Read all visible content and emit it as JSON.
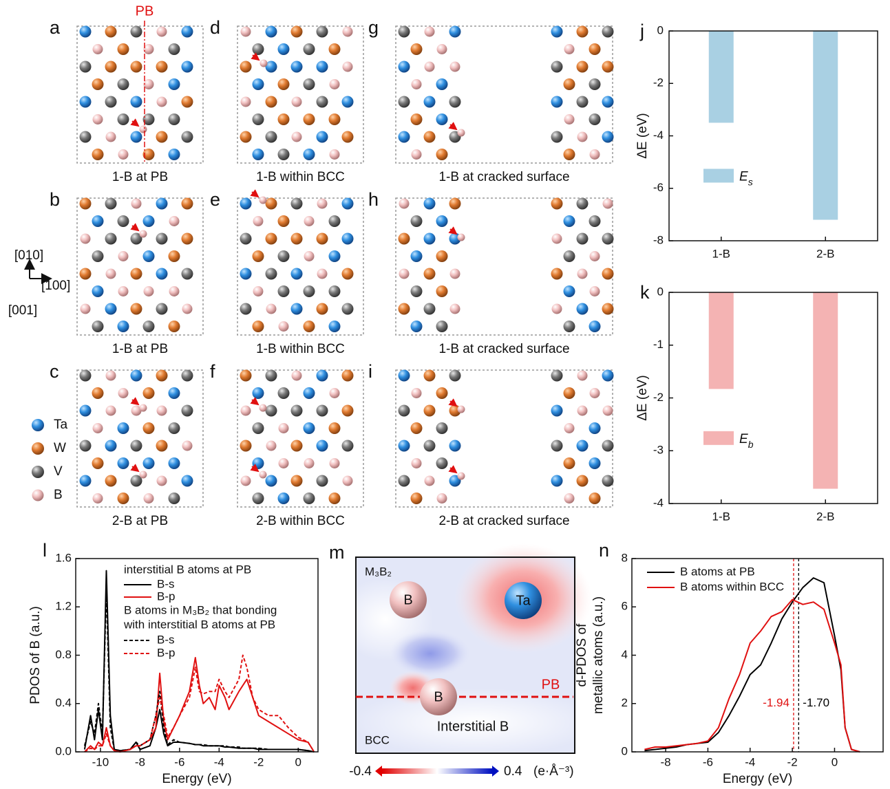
{
  "panels": [
    {
      "label": "a",
      "caption": "1-B at PB"
    },
    {
      "label": "b",
      "caption": "1-B at PB"
    },
    {
      "label": "c",
      "caption": "2-B at PB"
    },
    {
      "label": "d",
      "caption": "1-B within BCC"
    },
    {
      "label": "e",
      "caption": "1-B within BCC"
    },
    {
      "label": "f",
      "caption": "2-B within BCC"
    },
    {
      "label": "g",
      "caption": "1-B at cracked surface"
    },
    {
      "label": "h",
      "caption": "1-B at cracked surface"
    },
    {
      "label": "i",
      "caption": "2-B at cracked surface"
    }
  ],
  "boundary_label": "PB",
  "directions": [
    "[010]",
    "[100]",
    "[001]"
  ],
  "atom_legend": [
    "Ta",
    "W",
    "V",
    "B"
  ],
  "charge_map": {
    "label": "m",
    "region_labels": [
      "M₃B₂",
      "BCC"
    ],
    "atoms": [
      "B",
      "Ta",
      "B"
    ],
    "boundary_label": "PB",
    "interstitial_label": "Interstitial B",
    "colorbar": {
      "min": -0.4,
      "max": 0.4,
      "unit": "(e·Å⁻³)"
    }
  },
  "chart_data": [
    {
      "type": "bar",
      "panel_label": "j",
      "ylabel": "ΔE (eV)",
      "categories": [
        "1-B",
        "2-B"
      ],
      "series": [
        {
          "name": "Es",
          "color": "#a9d0e3",
          "values": [
            -3.5,
            -7.2
          ]
        }
      ],
      "ylim": [
        -8,
        0
      ],
      "yticks": [
        0,
        -2,
        -4,
        -6,
        -8
      ]
    },
    {
      "type": "bar",
      "panel_label": "k",
      "ylabel": "ΔE (eV)",
      "categories": [
        "1-B",
        "2-B"
      ],
      "series": [
        {
          "name": "Eb",
          "color": "#f4b3b3",
          "values": [
            -1.83,
            -3.72
          ]
        }
      ],
      "ylim": [
        -4,
        0
      ],
      "yticks": [
        0,
        -1,
        -2,
        -3,
        -4
      ]
    },
    {
      "type": "line",
      "panel_label": "l",
      "xlabel": "Energy (eV)",
      "ylabel": "PDOS of B (a.u.)",
      "legend_headers": [
        "interstitial B atoms at PB",
        "B atoms in M₃B₂ that bonding",
        "with interstitial B atoms at PB"
      ],
      "x": [
        -10.8,
        -10.5,
        -10.3,
        -10.1,
        -9.9,
        -9.7,
        -9.5,
        -9.3,
        -9,
        -8.5,
        -8.2,
        -8,
        -7.5,
        -7.2,
        -7,
        -6.8,
        -6.6,
        -6.3,
        -6,
        -5.5,
        -5.2,
        -5,
        -4.8,
        -4.5,
        -4.2,
        -4,
        -3.7,
        -3.5,
        -3,
        -2.8,
        -2.6,
        -2.3,
        -2,
        -1.5,
        -1,
        -0.5,
        0,
        0.5,
        0.8
      ],
      "series": [
        {
          "name": "B-s",
          "color": "#000000",
          "dash": false,
          "values": [
            0.02,
            0.3,
            0.1,
            0.35,
            0.1,
            1.5,
            0.3,
            0.02,
            0.01,
            0.02,
            0.08,
            0.02,
            0.05,
            0.2,
            0.35,
            0.15,
            0.05,
            0.08,
            0.08,
            0.07,
            0.06,
            0.06,
            0.05,
            0.05,
            0.05,
            0.05,
            0.04,
            0.04,
            0.03,
            0.03,
            0.03,
            0.03,
            0.02,
            0.02,
            0.02,
            0.02,
            0.02,
            0.01,
            0
          ]
        },
        {
          "name": "B-p",
          "color": "#e01010",
          "dash": false,
          "values": [
            0,
            0.05,
            0.02,
            0.08,
            0.05,
            0.2,
            0.05,
            0.01,
            0,
            0.02,
            0.05,
            0.05,
            0.1,
            0.2,
            0.65,
            0.25,
            0.1,
            0.2,
            0.3,
            0.5,
            0.78,
            0.55,
            0.4,
            0.45,
            0.35,
            0.55,
            0.45,
            0.35,
            0.5,
            0.55,
            0.6,
            0.45,
            0.3,
            0.25,
            0.2,
            0.15,
            0.1,
            0.08,
            0
          ]
        },
        {
          "name": "B-s",
          "color": "#000000",
          "dash": true,
          "values": [
            0.05,
            0.25,
            0.15,
            0.4,
            0.15,
            1.35,
            0.2,
            0.02,
            0.01,
            0.02,
            0.08,
            0.05,
            0.1,
            0.3,
            0.5,
            0.2,
            0.06,
            0.1,
            0.08,
            0.07,
            0.06,
            0.06,
            0.06,
            0.05,
            0.05,
            0.05,
            0.05,
            0.04,
            0.04,
            0.03,
            0.03,
            0.03,
            0.03,
            0.02,
            0.02,
            0.02,
            0.02,
            0.01,
            0
          ]
        },
        {
          "name": "B-p",
          "color": "#e01010",
          "dash": true,
          "values": [
            0,
            0.03,
            0.02,
            0.05,
            0.05,
            0.15,
            0.05,
            0.01,
            0,
            0.02,
            0.05,
            0.05,
            0.1,
            0.3,
            0.45,
            0.3,
            0.12,
            0.2,
            0.3,
            0.45,
            0.7,
            0.5,
            0.48,
            0.5,
            0.5,
            0.6,
            0.5,
            0.45,
            0.6,
            0.8,
            0.7,
            0.45,
            0.35,
            0.3,
            0.3,
            0.2,
            0.12,
            0.08,
            0
          ]
        }
      ],
      "xlim": [
        -11.25,
        1
      ],
      "xticks": [
        -10,
        -8,
        -6,
        -4,
        -2,
        0
      ],
      "ylim": [
        0,
        1.6
      ],
      "yticks": [
        {
          "value": 0,
          "label": "0.0"
        },
        0.4,
        0.8,
        1.2,
        1.6
      ]
    },
    {
      "type": "line",
      "panel_label": "n",
      "xlabel": "Energy (eV)",
      "ylabel": [
        "d-PDOS of",
        "metallic atoms (a.u.)"
      ],
      "x": [
        -9,
        -8.5,
        -8,
        -7.5,
        -7,
        -6.5,
        -6,
        -5.5,
        -5,
        -4.5,
        -4,
        -3.5,
        -3,
        -2.5,
        -2,
        -1.5,
        -1,
        -0.5,
        0,
        0.3,
        0.5,
        0.8,
        1.2
      ],
      "series": [
        {
          "name": "B atoms at PB",
          "color": "#000000",
          "dash": false,
          "values": [
            0.05,
            0.1,
            0.15,
            0.2,
            0.3,
            0.35,
            0.4,
            0.8,
            1.5,
            2.3,
            3.2,
            3.6,
            4.5,
            5.5,
            6.2,
            6.8,
            7.2,
            7.0,
            4.8,
            3.4,
            1.0,
            0.1,
            0
          ]
        },
        {
          "name": "B atoms within BCC",
          "color": "#e01010",
          "dash": false,
          "values": [
            0.1,
            0.2,
            0.2,
            0.25,
            0.3,
            0.35,
            0.45,
            1.0,
            2.2,
            3.2,
            4.5,
            5.0,
            5.6,
            5.8,
            6.3,
            6.1,
            6.2,
            5.9,
            4.5,
            3.6,
            1.0,
            0.1,
            0
          ]
        }
      ],
      "vlines": [
        {
          "value": -1.94,
          "label": "-1.94",
          "color": "#e01010"
        },
        {
          "value": -1.7,
          "label": "-1.70",
          "color": "#000000"
        }
      ],
      "xlim": [
        -9.6,
        2.3
      ],
      "xticks": [
        -8,
        -6,
        -4,
        -2,
        0
      ],
      "ylim": [
        0,
        8
      ],
      "yticks": [
        0,
        2,
        4,
        6,
        8
      ]
    }
  ]
}
